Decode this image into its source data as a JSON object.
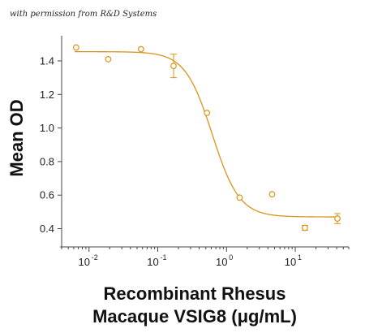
{
  "credit": "with permission from R&D Systems",
  "chart_data": {
    "type": "scatter",
    "title": "",
    "ylabel": "Mean OD",
    "xlabel_lines": [
      "Recombinant Rhesus",
      "Macaque VSIG8 (μg/mL)"
    ],
    "xscale": "log",
    "xlim": [
      0.004,
      60
    ],
    "ylim": [
      0.33,
      1.55
    ],
    "yticks": [
      0.4,
      0.6,
      0.8,
      1.0,
      1.2,
      1.4
    ],
    "ytick_labels": [
      "0.4",
      "0.6",
      "0.8",
      "1.0",
      "1.2",
      "1.4"
    ],
    "xticks": [
      0.01,
      0.1,
      1,
      10
    ],
    "xtick_labels": [
      {
        "base": "10",
        "exp": "-2"
      },
      {
        "base": "10",
        "exp": "-1"
      },
      {
        "base": "10",
        "exp": "0"
      },
      {
        "base": "10",
        "exp": "1"
      }
    ],
    "color": "#D9931C",
    "points": [
      {
        "x": 0.0065,
        "y": 1.48,
        "err": 0
      },
      {
        "x": 0.019,
        "y": 1.41,
        "err": 0
      },
      {
        "x": 0.057,
        "y": 1.47,
        "err": 0
      },
      {
        "x": 0.17,
        "y": 1.37,
        "err": 0.07
      },
      {
        "x": 0.52,
        "y": 1.09,
        "err": 0
      },
      {
        "x": 1.55,
        "y": 0.585,
        "err": 0
      },
      {
        "x": 4.6,
        "y": 0.605,
        "err": 0
      },
      {
        "x": 13.8,
        "y": 0.405,
        "err": 0.015
      },
      {
        "x": 41,
        "y": 0.46,
        "err": 0.03
      }
    ],
    "fit": {
      "top": 1.455,
      "bottom": 0.47,
      "ec50": 0.62,
      "hill": 2.2
    }
  }
}
